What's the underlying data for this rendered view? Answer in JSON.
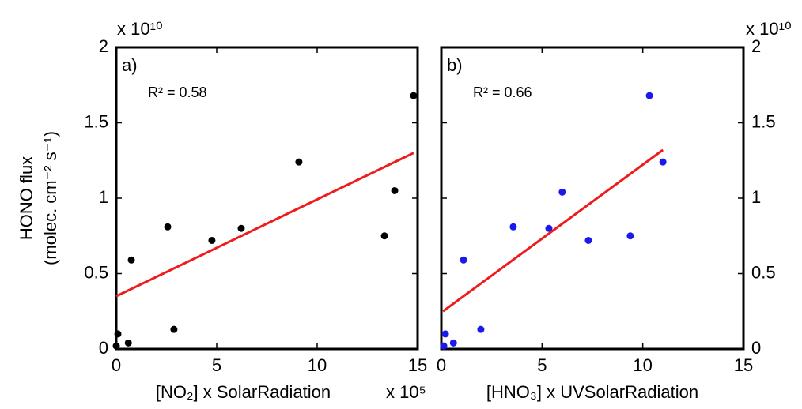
{
  "chart_data": [
    {
      "type": "scatter",
      "panel_label": "a)",
      "annotation": "R² = 0.58",
      "xlabel": "[NO₂] x SolarRadiation",
      "x_multiplier": "x 10⁵",
      "ylabel": [
        "HONO flux",
        "(molec. cm⁻² s⁻¹)"
      ],
      "y_multiplier": "x 10¹⁰",
      "xlim": [
        0,
        15
      ],
      "ylim": [
        0,
        2
      ],
      "xticks": [
        0,
        5,
        10,
        15
      ],
      "yticks": [
        0,
        0.5,
        1,
        1.5,
        2
      ],
      "y_axis_side": "left",
      "color": "#000000",
      "x": [
        0,
        0.08,
        0.6,
        0.75,
        2.56,
        2.87,
        4.76,
        6.22,
        9.09,
        13.35,
        13.86,
        14.8
      ],
      "values": [
        0.02,
        0.1,
        0.04,
        0.59,
        0.81,
        0.13,
        0.72,
        0.8,
        1.24,
        0.75,
        1.05,
        1.68
      ],
      "fit": {
        "color": "#ee1c1c",
        "x": [
          0,
          14.8
        ],
        "values": [
          0.35,
          1.3
        ]
      }
    },
    {
      "type": "scatter",
      "panel_label": "b)",
      "annotation": "R² = 0.66",
      "xlabel": "[HNO₃] x UVSolarRadiation",
      "y_multiplier": "x 10¹⁰",
      "xlim": [
        0,
        15
      ],
      "ylim": [
        0,
        2
      ],
      "xticks": [
        0,
        5,
        10,
        15
      ],
      "yticks": [
        0,
        0.5,
        1,
        1.5,
        2
      ],
      "y_axis_side": "right",
      "color": "#1a1aee",
      "x": [
        0.12,
        0.2,
        0.6,
        1.1,
        1.96,
        3.57,
        5.34,
        6.0,
        7.3,
        9.38,
        10.33,
        11.0
      ],
      "values": [
        0.02,
        0.1,
        0.04,
        0.59,
        0.13,
        0.81,
        0.8,
        1.04,
        0.72,
        0.75,
        1.68,
        1.24
      ],
      "fit": {
        "color": "#ee1c1c",
        "x": [
          0.08,
          11.0
        ],
        "values": [
          0.25,
          1.32
        ]
      }
    }
  ]
}
